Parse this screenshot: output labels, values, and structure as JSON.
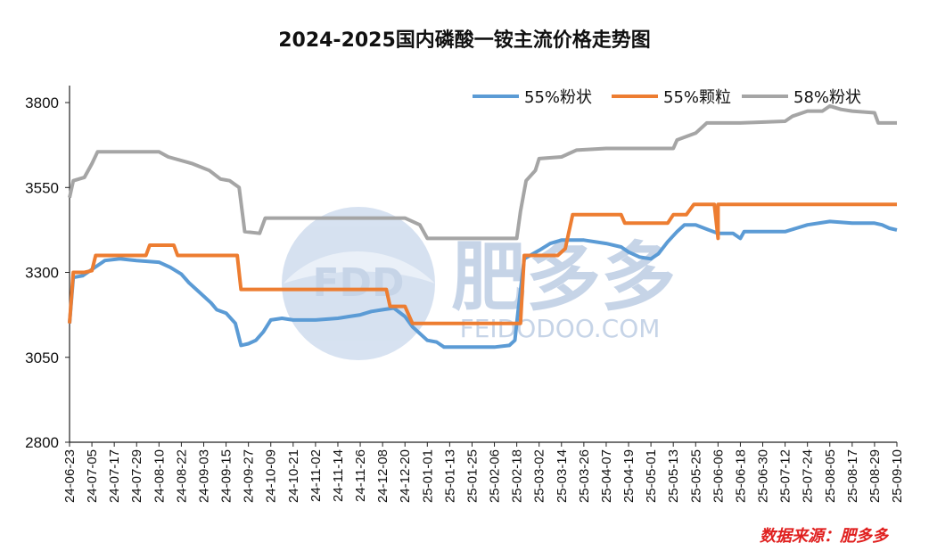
{
  "chart_data": {
    "type": "line",
    "title": "2024-2025国内磷酸一铵主流价格走势图",
    "xlabel": "",
    "ylabel": "",
    "ylim": [
      2800,
      3850
    ],
    "yticks": [
      2800,
      3050,
      3300,
      3550,
      3800
    ],
    "xlim": [
      "2024-06-23",
      "2025-09-10"
    ],
    "x_tick_labels": [
      "24-06-23",
      "24-07-05",
      "24-07-17",
      "24-07-29",
      "24-08-10",
      "24-08-22",
      "24-09-03",
      "24-09-15",
      "24-09-27",
      "24-10-09",
      "24-10-21",
      "24-11-02",
      "24-11-14",
      "24-11-26",
      "24-12-08",
      "24-12-20",
      "25-01-01",
      "25-01-13",
      "25-01-25",
      "25-02-06",
      "25-02-18",
      "25-03-02",
      "25-03-14",
      "25-03-26",
      "25-04-07",
      "25-04-19",
      "25-05-01",
      "25-05-13",
      "25-05-25",
      "25-06-06",
      "25-06-18",
      "25-06-30",
      "25-07-12",
      "25-07-24",
      "25-08-05",
      "25-08-17",
      "25-08-29",
      "25-09-10"
    ],
    "legend_position": "top-right",
    "grid": false,
    "series": [
      {
        "name": "55%粉状",
        "color": "#5b9bd5",
        "points": [
          [
            "2024-06-23",
            3150
          ],
          [
            "2024-06-25",
            3285
          ],
          [
            "2024-06-30",
            3290
          ],
          [
            "2024-07-04",
            3305
          ],
          [
            "2024-07-08",
            3320
          ],
          [
            "2024-07-12",
            3335
          ],
          [
            "2024-07-20",
            3340
          ],
          [
            "2024-07-29",
            3335
          ],
          [
            "2024-08-10",
            3330
          ],
          [
            "2024-08-16",
            3315
          ],
          [
            "2024-08-22",
            3295
          ],
          [
            "2024-08-26",
            3270
          ],
          [
            "2024-09-01",
            3240
          ],
          [
            "2024-09-07",
            3210
          ],
          [
            "2024-09-10",
            3190
          ],
          [
            "2024-09-15",
            3180
          ],
          [
            "2024-09-20",
            3150
          ],
          [
            "2024-09-23",
            3085
          ],
          [
            "2024-09-27",
            3090
          ],
          [
            "2024-10-01",
            3100
          ],
          [
            "2024-10-05",
            3125
          ],
          [
            "2024-10-09",
            3160
          ],
          [
            "2024-10-15",
            3165
          ],
          [
            "2024-10-21",
            3160
          ],
          [
            "2024-11-02",
            3160
          ],
          [
            "2024-11-14",
            3165
          ],
          [
            "2024-11-20",
            3170
          ],
          [
            "2024-11-26",
            3175
          ],
          [
            "2024-12-02",
            3185
          ],
          [
            "2024-12-08",
            3190
          ],
          [
            "2024-12-14",
            3195
          ],
          [
            "2024-12-20",
            3170
          ],
          [
            "2024-12-24",
            3140
          ],
          [
            "2025-01-01",
            3100
          ],
          [
            "2025-01-06",
            3095
          ],
          [
            "2025-01-10",
            3080
          ],
          [
            "2025-01-25",
            3080
          ],
          [
            "2025-02-06",
            3080
          ],
          [
            "2025-02-14",
            3085
          ],
          [
            "2025-02-17",
            3100
          ],
          [
            "2025-02-19",
            3200
          ],
          [
            "2025-02-22",
            3340
          ],
          [
            "2025-03-02",
            3365
          ],
          [
            "2025-03-08",
            3385
          ],
          [
            "2025-03-14",
            3395
          ],
          [
            "2025-03-26",
            3395
          ],
          [
            "2025-04-07",
            3385
          ],
          [
            "2025-04-15",
            3375
          ],
          [
            "2025-04-19",
            3360
          ],
          [
            "2025-04-25",
            3345
          ],
          [
            "2025-05-01",
            3340
          ],
          [
            "2025-05-05",
            3355
          ],
          [
            "2025-05-10",
            3390
          ],
          [
            "2025-05-15",
            3420
          ],
          [
            "2025-05-19",
            3440
          ],
          [
            "2025-05-25",
            3440
          ],
          [
            "2025-06-01",
            3425
          ],
          [
            "2025-06-06",
            3415
          ],
          [
            "2025-06-14",
            3415
          ],
          [
            "2025-06-18",
            3400
          ],
          [
            "2025-06-20",
            3420
          ],
          [
            "2025-06-30",
            3420
          ],
          [
            "2025-07-12",
            3420
          ],
          [
            "2025-07-18",
            3430
          ],
          [
            "2025-07-24",
            3440
          ],
          [
            "2025-08-05",
            3450
          ],
          [
            "2025-08-17",
            3445
          ],
          [
            "2025-08-29",
            3445
          ],
          [
            "2025-09-02",
            3440
          ],
          [
            "2025-09-06",
            3430
          ],
          [
            "2025-09-10",
            3425
          ]
        ]
      },
      {
        "name": "55%颗粒",
        "color": "#ed7d31",
        "points": [
          [
            "2024-06-23",
            3150
          ],
          [
            "2024-06-25",
            3300
          ],
          [
            "2024-07-01",
            3300
          ],
          [
            "2024-07-05",
            3305
          ],
          [
            "2024-07-07",
            3350
          ],
          [
            "2024-07-29",
            3350
          ],
          [
            "2024-08-03",
            3350
          ],
          [
            "2024-08-05",
            3380
          ],
          [
            "2024-08-18",
            3380
          ],
          [
            "2024-08-20",
            3350
          ],
          [
            "2024-09-15",
            3350
          ],
          [
            "2024-09-21",
            3350
          ],
          [
            "2024-09-23",
            3250
          ],
          [
            "2024-12-10",
            3250
          ],
          [
            "2024-12-12",
            3200
          ],
          [
            "2024-12-20",
            3200
          ],
          [
            "2024-12-24",
            3150
          ],
          [
            "2025-02-20",
            3150
          ],
          [
            "2025-02-22",
            3350
          ],
          [
            "2025-03-12",
            3350
          ],
          [
            "2025-03-16",
            3370
          ],
          [
            "2025-03-20",
            3470
          ],
          [
            "2025-04-15",
            3470
          ],
          [
            "2025-04-17",
            3445
          ],
          [
            "2025-05-10",
            3445
          ],
          [
            "2025-05-13",
            3470
          ],
          [
            "2025-05-20",
            3470
          ],
          [
            "2025-05-24",
            3500
          ],
          [
            "2025-06-04",
            3500
          ],
          [
            "2025-06-06",
            3400
          ],
          [
            "2025-06-06",
            3500
          ],
          [
            "2025-09-10",
            3500
          ]
        ]
      },
      {
        "name": "58%粉状",
        "color": "#a5a5a5",
        "points": [
          [
            "2024-06-23",
            3520
          ],
          [
            "2024-06-25",
            3570
          ],
          [
            "2024-07-01",
            3580
          ],
          [
            "2024-07-05",
            3620
          ],
          [
            "2024-07-08",
            3655
          ],
          [
            "2024-07-29",
            3655
          ],
          [
            "2024-08-10",
            3655
          ],
          [
            "2024-08-15",
            3640
          ],
          [
            "2024-08-28",
            3620
          ],
          [
            "2024-09-06",
            3600
          ],
          [
            "2024-09-12",
            3575
          ],
          [
            "2024-09-17",
            3570
          ],
          [
            "2024-09-22",
            3550
          ],
          [
            "2024-09-25",
            3420
          ],
          [
            "2024-10-03",
            3415
          ],
          [
            "2024-10-06",
            3460
          ],
          [
            "2024-10-21",
            3460
          ],
          [
            "2024-11-14",
            3460
          ],
          [
            "2024-12-20",
            3460
          ],
          [
            "2024-12-28",
            3440
          ],
          [
            "2025-01-01",
            3400
          ],
          [
            "2025-02-18",
            3400
          ],
          [
            "2025-02-20",
            3480
          ],
          [
            "2025-02-23",
            3570
          ],
          [
            "2025-02-28",
            3600
          ],
          [
            "2025-03-02",
            3635
          ],
          [
            "2025-03-14",
            3640
          ],
          [
            "2025-03-22",
            3660
          ],
          [
            "2025-04-07",
            3665
          ],
          [
            "2025-05-13",
            3665
          ],
          [
            "2025-05-15",
            3690
          ],
          [
            "2025-05-25",
            3710
          ],
          [
            "2025-05-31",
            3740
          ],
          [
            "2025-06-18",
            3740
          ],
          [
            "2025-07-12",
            3745
          ],
          [
            "2025-07-16",
            3760
          ],
          [
            "2025-07-24",
            3775
          ],
          [
            "2025-08-01",
            3775
          ],
          [
            "2025-08-05",
            3790
          ],
          [
            "2025-08-11",
            3780
          ],
          [
            "2025-08-17",
            3775
          ],
          [
            "2025-08-29",
            3770
          ],
          [
            "2025-08-31",
            3740
          ],
          [
            "2025-09-10",
            3740
          ]
        ]
      }
    ],
    "watermark": {
      "brand": "FDD",
      "name": "肥多多",
      "url": "FEIDODOO.COM"
    },
    "source_note": "数据来源：肥多多"
  }
}
